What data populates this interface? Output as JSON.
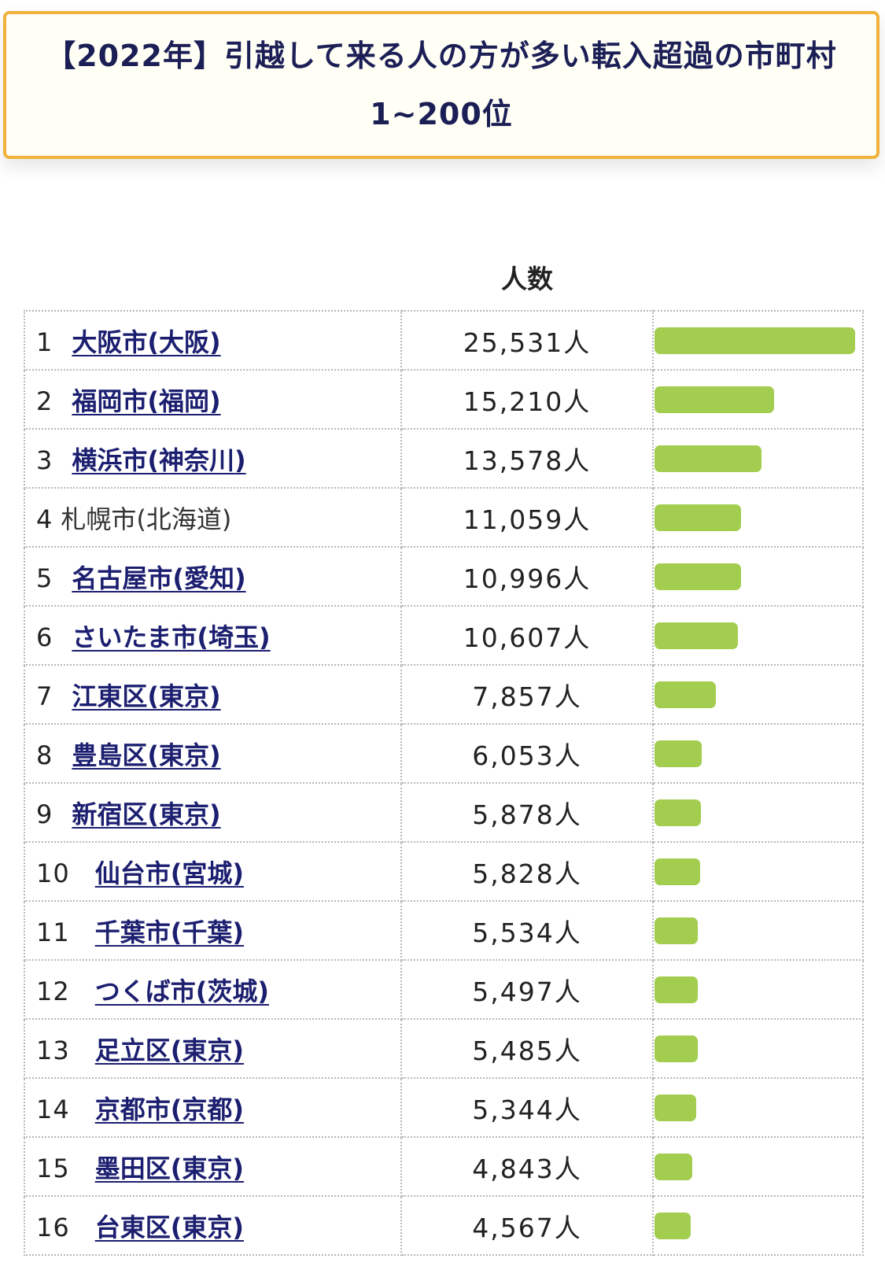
{
  "header": {
    "title": "【2022年】引越して来る人の方が多い転入超過の市町村 1~200位"
  },
  "table": {
    "column_header": "人数",
    "max_value": 25531,
    "bar_color": "#a3cd4f",
    "rows": [
      {
        "rank": "1",
        "name": "大阪市(大阪)",
        "value_label": "25,531人",
        "value": 25531,
        "linked": true
      },
      {
        "rank": "2",
        "name": "福岡市(福岡)",
        "value_label": "15,210人",
        "value": 15210,
        "linked": true
      },
      {
        "rank": "3",
        "name": "横浜市(神奈川)",
        "value_label": "13,578人",
        "value": 13578,
        "linked": true
      },
      {
        "rank": "4",
        "name": "札幌市(北海道)",
        "value_label": "11,059人",
        "value": 11059,
        "linked": false
      },
      {
        "rank": "5",
        "name": "名古屋市(愛知)",
        "value_label": "10,996人",
        "value": 10996,
        "linked": true
      },
      {
        "rank": "6",
        "name": "さいたま市(埼玉)",
        "value_label": "10,607人",
        "value": 10607,
        "linked": true
      },
      {
        "rank": "7",
        "name": "江東区(東京)",
        "value_label": "7,857人",
        "value": 7857,
        "linked": true
      },
      {
        "rank": "8",
        "name": "豊島区(東京)",
        "value_label": "6,053人",
        "value": 6053,
        "linked": true
      },
      {
        "rank": "9",
        "name": "新宿区(東京)",
        "value_label": "5,878人",
        "value": 5878,
        "linked": true
      },
      {
        "rank": "10",
        "name": "仙台市(宮城)",
        "value_label": "5,828人",
        "value": 5828,
        "linked": true
      },
      {
        "rank": "11",
        "name": "千葉市(千葉)",
        "value_label": "5,534人",
        "value": 5534,
        "linked": true
      },
      {
        "rank": "12",
        "name": "つくば市(茨城)",
        "value_label": "5,497人",
        "value": 5497,
        "linked": true
      },
      {
        "rank": "13",
        "name": "足立区(東京)",
        "value_label": "5,485人",
        "value": 5485,
        "linked": true
      },
      {
        "rank": "14",
        "name": "京都市(京都)",
        "value_label": "5,344人",
        "value": 5344,
        "linked": true
      },
      {
        "rank": "15",
        "name": "墨田区(東京)",
        "value_label": "4,843人",
        "value": 4843,
        "linked": true
      },
      {
        "rank": "16",
        "name": "台東区(東京)",
        "value_label": "4,567人",
        "value": 4567,
        "linked": true
      }
    ]
  }
}
